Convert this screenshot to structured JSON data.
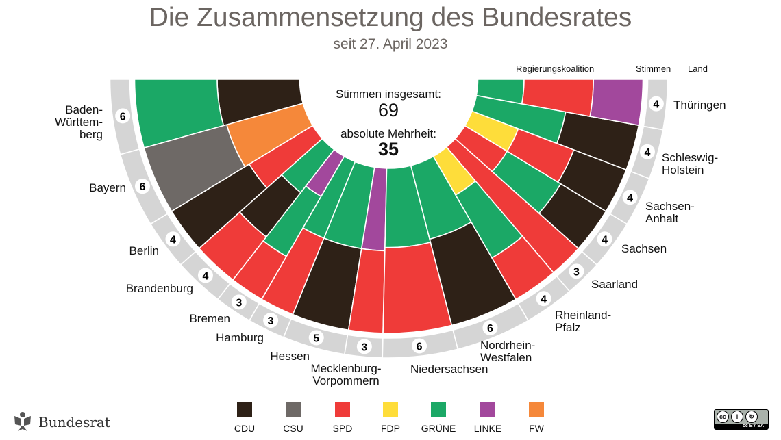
{
  "title": "Die Zusammensetzung des Bundesrates",
  "subtitle": "seit 27. April 2023",
  "headers": {
    "coalition": "Regierungskoalition",
    "votes": "Stimmen",
    "state": "Land"
  },
  "center": {
    "total_label": "Stimmen insgesamt:",
    "total": "69",
    "majority_label": "absolute Mehrheit:",
    "majority": "35"
  },
  "colors": {
    "CDU": "#2e2117",
    "CSU": "#6e6966",
    "SPD": "#ef3b39",
    "FDP": "#fedd3a",
    "GRÜNE": "#1ba866",
    "LINKE": "#a2489c",
    "FW": "#f5883a",
    "ring": "#d5d5d5"
  },
  "legend": [
    "CDU",
    "CSU",
    "SPD",
    "FDP",
    "GRÜNE",
    "LINKE",
    "FW"
  ],
  "states": [
    {
      "name": "Baden-\nWürttem-\nberg",
      "votes": 6,
      "parties": [
        "CDU",
        "GRÜNE"
      ],
      "shares": [
        0.5,
        0.5
      ]
    },
    {
      "name": "Bayern",
      "votes": 6,
      "parties": [
        "FW",
        "CSU"
      ],
      "shares": [
        0.48,
        0.52
      ]
    },
    {
      "name": "Berlin",
      "votes": 4,
      "parties": [
        "SPD",
        "CDU"
      ],
      "shares": [
        0.45,
        0.55
      ]
    },
    {
      "name": "Brandenburg",
      "votes": 4,
      "parties": [
        "GRÜNE",
        "CDU",
        "SPD"
      ],
      "shares": [
        0.33,
        0.34,
        0.33
      ]
    },
    {
      "name": "Bremen",
      "votes": 3,
      "parties": [
        "LINKE",
        "GRÜNE",
        "SPD"
      ],
      "shares": [
        0.28,
        0.42,
        0.3
      ]
    },
    {
      "name": "Hamburg",
      "votes": 3,
      "parties": [
        "GRÜNE",
        "SPD"
      ],
      "shares": [
        0.5,
        0.5
      ]
    },
    {
      "name": "Hessen",
      "votes": 5,
      "parties": [
        "GRÜNE",
        "CDU"
      ],
      "shares": [
        0.5,
        0.5
      ]
    },
    {
      "name": "Mecklenburg-\nVorpommern",
      "votes": 3,
      "parties": [
        "LINKE",
        "SPD"
      ],
      "shares": [
        0.5,
        0.5
      ]
    },
    {
      "name": "Niedersachsen",
      "votes": 6,
      "parties": [
        "GRÜNE",
        "SPD"
      ],
      "shares": [
        0.48,
        0.52
      ]
    },
    {
      "name": "Nordrhein-\nWestfalen",
      "votes": 6,
      "parties": [
        "GRÜNE",
        "CDU"
      ],
      "shares": [
        0.46,
        0.54
      ]
    },
    {
      "name": "Rheinland-\nPfalz",
      "votes": 4,
      "parties": [
        "FDP",
        "GRÜNE",
        "SPD"
      ],
      "shares": [
        0.27,
        0.44,
        0.29
      ]
    },
    {
      "name": "Saarland",
      "votes": 3,
      "parties": [
        "SPD"
      ],
      "shares": [
        1
      ]
    },
    {
      "name": "Sachsen",
      "votes": 4,
      "parties": [
        "SPD",
        "GRÜNE",
        "CDU"
      ],
      "shares": [
        0.3,
        0.38,
        0.32
      ]
    },
    {
      "name": "Sachsen-\nAnhalt",
      "votes": 4,
      "parties": [
        "FDP",
        "SPD",
        "CDU"
      ],
      "shares": [
        0.3,
        0.36,
        0.34
      ]
    },
    {
      "name": "Schleswig-\nHolstein",
      "votes": 4,
      "parties": [
        "GRÜNE",
        "CDU"
      ],
      "shares": [
        0.55,
        0.45
      ]
    },
    {
      "name": "Thüringen",
      "votes": 4,
      "parties": [
        "GRÜNE",
        "SPD",
        "LINKE"
      ],
      "shares": [
        0.28,
        0.42,
        0.3
      ]
    }
  ],
  "footer": {
    "logo_text": "Bundesrat",
    "license": "cc BY SA"
  }
}
